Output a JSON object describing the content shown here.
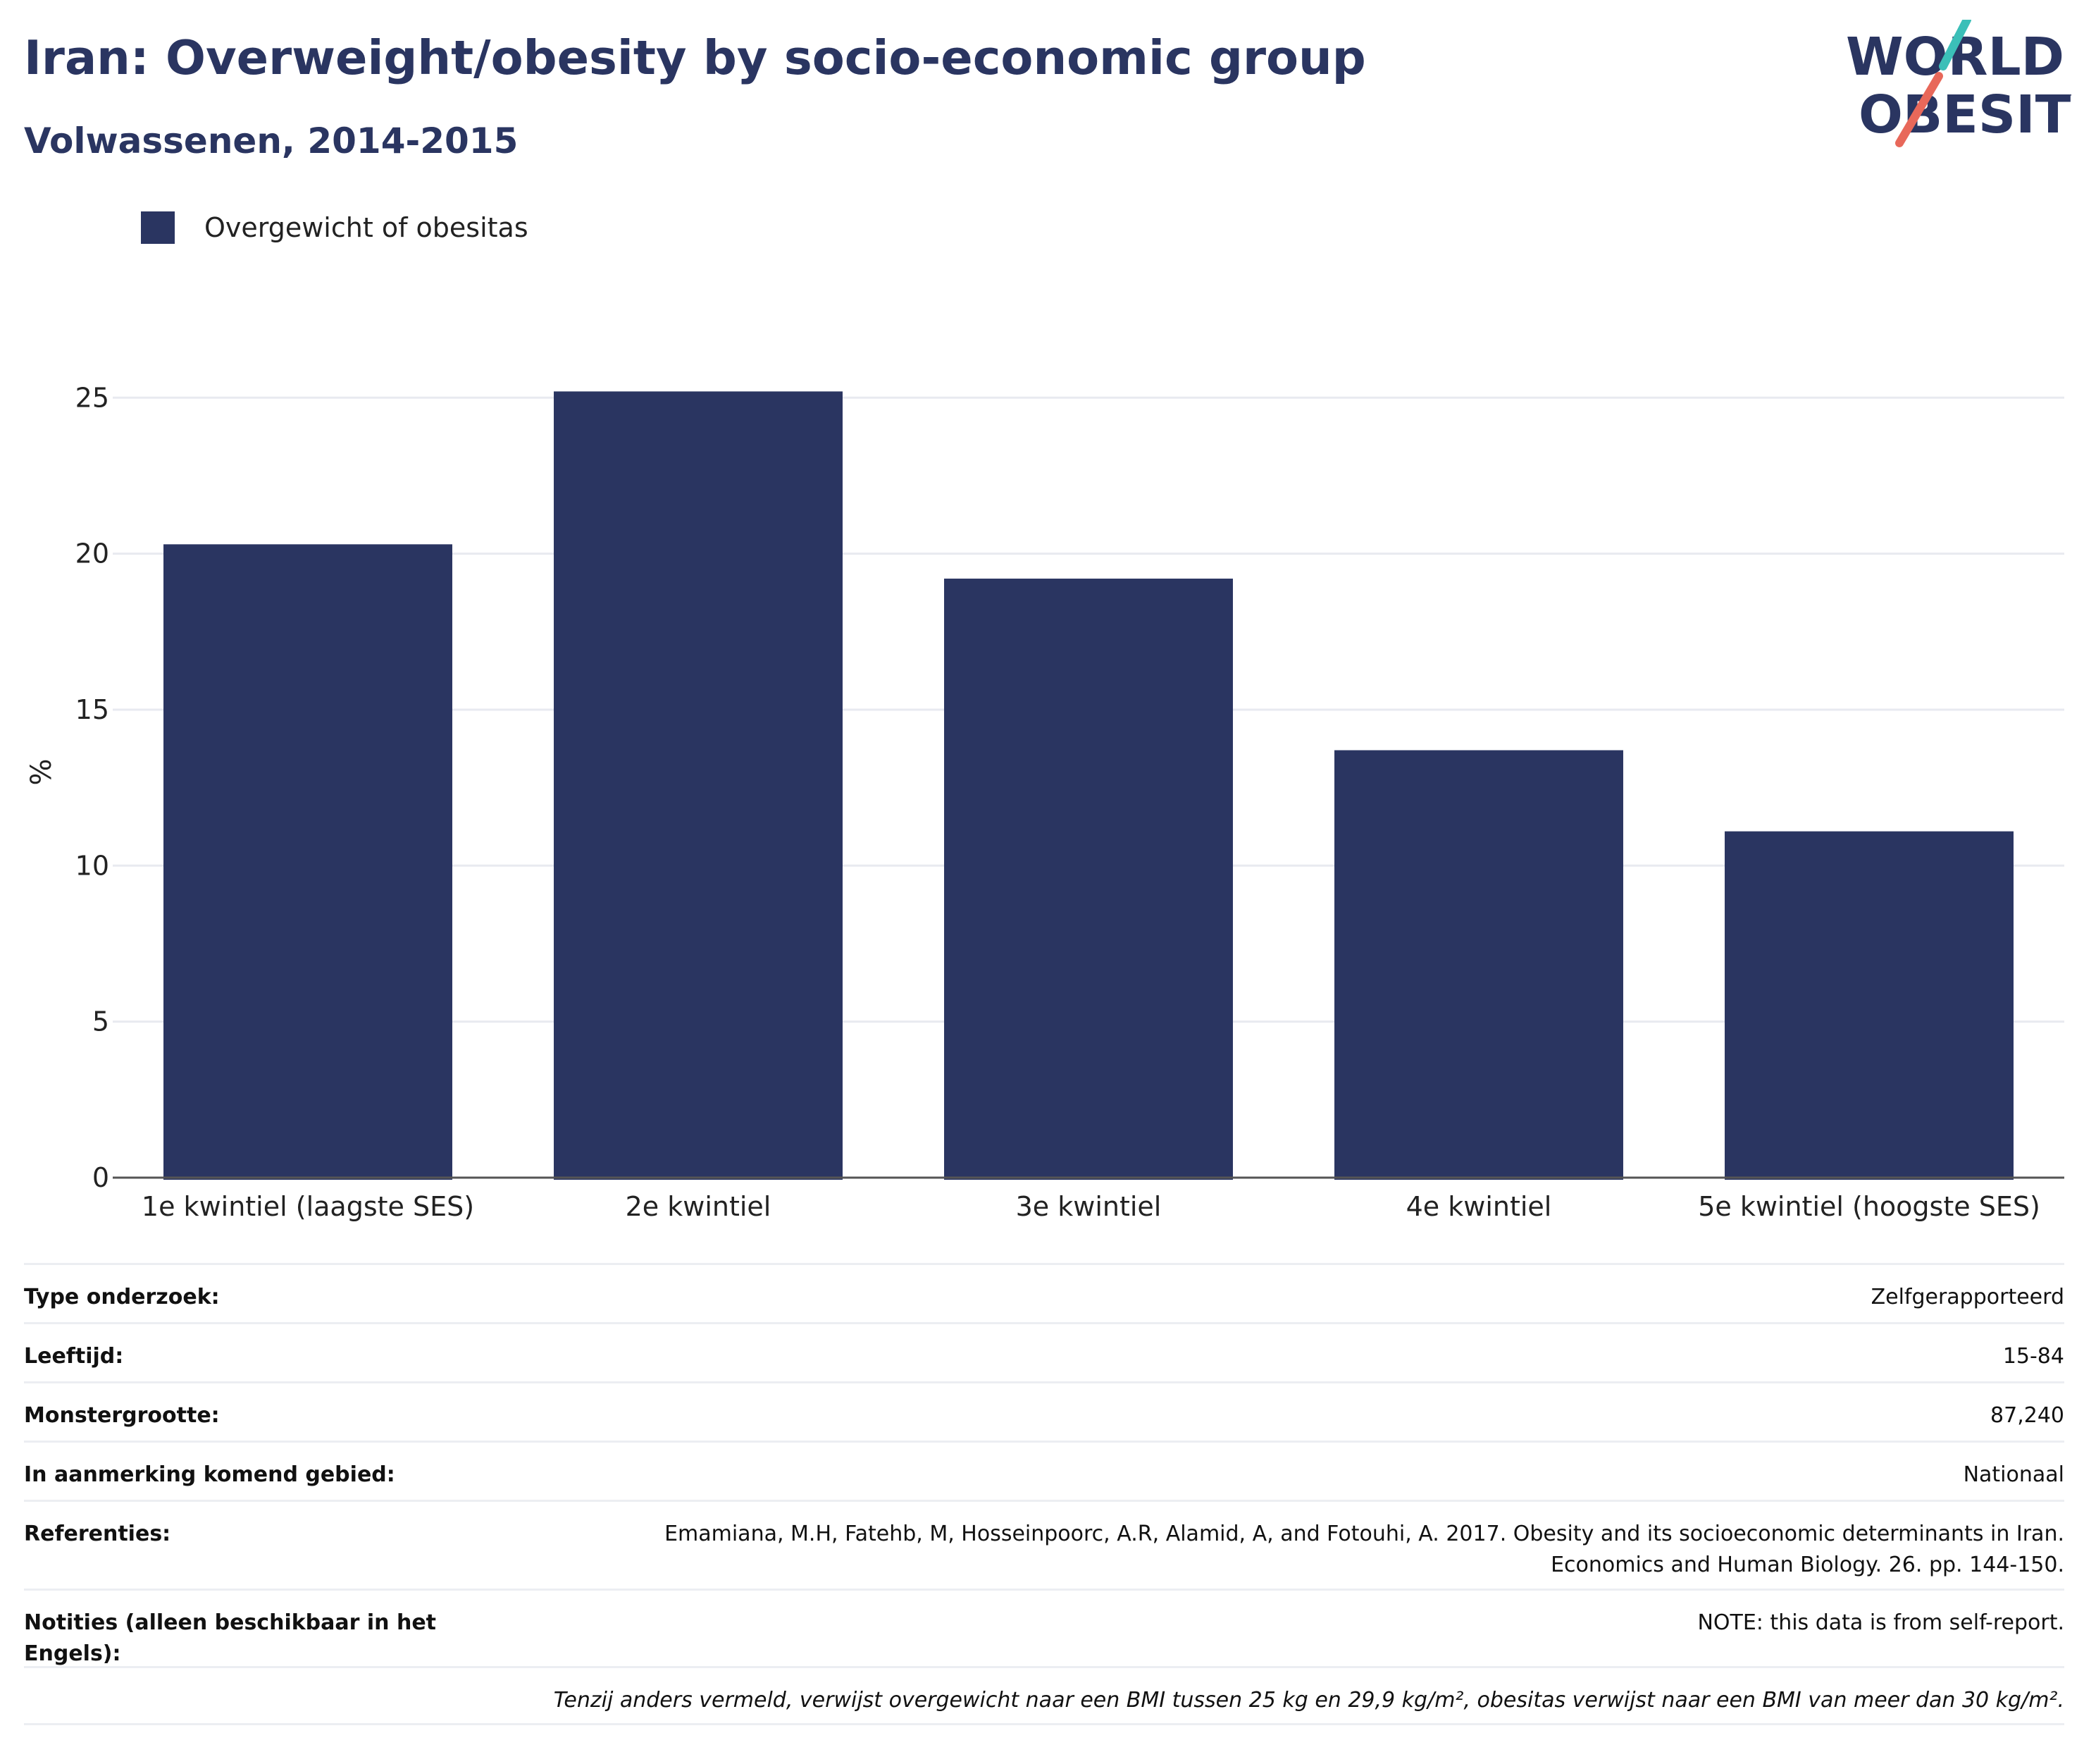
{
  "title": "Iran: Overweight/obesity by socio-economic group",
  "subtitle": "Volwassenen, 2014-2015",
  "logo": {
    "line1": "WORLD",
    "line2": "OBESITY",
    "colors": {
      "text": "#2a3561",
      "slash_top": "#3bbfb8",
      "slash_bottom": "#e8685a"
    }
  },
  "legend": {
    "label": "Overgewicht of obesitas",
    "color": "#2a3561"
  },
  "chart_data": {
    "type": "bar",
    "categories": [
      "1e kwintiel (laagste SES)",
      "2e kwintiel",
      "3e kwintiel",
      "4e kwintiel",
      "5e kwintiel (hoogste SES)"
    ],
    "series": [
      {
        "name": "Overgewicht of obesitas",
        "values": [
          20.3,
          25.2,
          19.2,
          13.7,
          11.1
        ],
        "color": "#2a3561"
      }
    ],
    "ylabel": "%",
    "ylim": [
      0,
      26
    ],
    "yticks": [
      0,
      5,
      10,
      15,
      20,
      25
    ],
    "grid": true,
    "legend_position": "top-left"
  },
  "meta": {
    "rows": [
      {
        "key": "Type onderzoek:",
        "value": "Zelfgerapporteerd"
      },
      {
        "key": "Leeftijd:",
        "value": "15-84"
      },
      {
        "key": "Monstergrootte:",
        "value": "87,240"
      },
      {
        "key": "In aanmerking komend gebied:",
        "value": "Nationaal"
      },
      {
        "key": "Referenties:",
        "value": "Emamiana, M.H, Fatehb, M, Hosseinpoorc, A.R, Alamid, A, and Fotouhi, A. 2017. Obesity and its socioeconomic determinants in Iran. Economics and Human Biology. 26. pp. 144-150."
      },
      {
        "key": "Notities (alleen beschikbaar in het Engels):",
        "value": "NOTE: this data is from self-report."
      }
    ],
    "footnote": "Tenzij anders vermeld, verwijst overgewicht naar een BMI tussen 25 kg en 29,9 kg/m², obesitas verwijst naar een BMI van meer dan 30 kg/m²."
  }
}
